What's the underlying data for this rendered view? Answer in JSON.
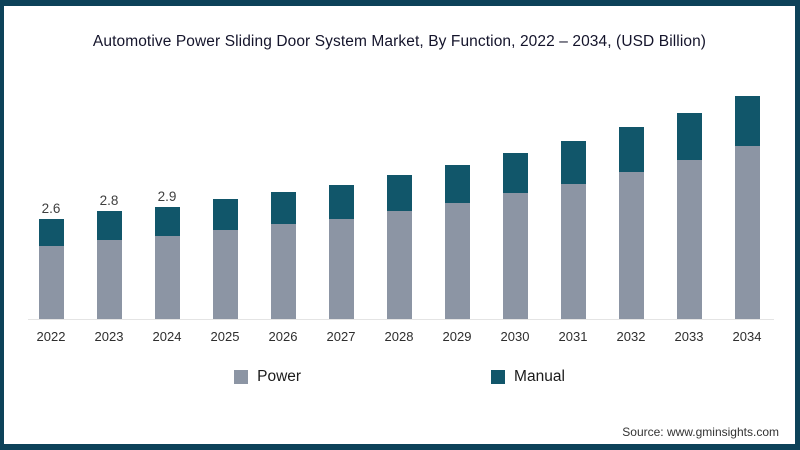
{
  "title": "Automotive Power Sliding Door System Market, By Function, 2022 – 2034, (USD Billion)",
  "source": "Source: www.gminsights.com",
  "colors": {
    "power": "#8C95A4",
    "manual": "#11566A",
    "frame_border": "#0D4259",
    "baseline": "#E4E4E4",
    "title_text": "#14142B",
    "axis_text": "#2E2E2E",
    "value_label_text": "#3F3F3F"
  },
  "chart_data": {
    "type": "bar",
    "stacked": true,
    "title": "Automotive Power Sliding Door System Market, By Function, 2022 – 2034, (USD Billion)",
    "categories": [
      "2022",
      "2023",
      "2024",
      "2025",
      "2026",
      "2027",
      "2028",
      "2029",
      "2030",
      "2031",
      "2032",
      "2033",
      "2034"
    ],
    "series": [
      {
        "name": "Power",
        "color": "#8C95A4",
        "values": [
          1.9,
          2.05,
          2.15,
          2.3,
          2.45,
          2.6,
          2.8,
          3.0,
          3.25,
          3.5,
          3.8,
          4.1,
          4.45
        ]
      },
      {
        "name": "Manual",
        "color": "#11566A",
        "values": [
          0.7,
          0.75,
          0.75,
          0.8,
          0.82,
          0.85,
          0.93,
          0.97,
          1.03,
          1.1,
          1.15,
          1.22,
          1.3
        ]
      }
    ],
    "total_labels": [
      "2.6",
      "2.8",
      "2.9",
      "",
      "",
      "",
      "",
      "",
      "",
      "",
      "",
      "",
      ""
    ],
    "xlabel": "",
    "ylabel": "",
    "ylim": [
      0,
      6
    ],
    "grid": false,
    "y_axis_shown": false,
    "legend_position": "bottom"
  }
}
